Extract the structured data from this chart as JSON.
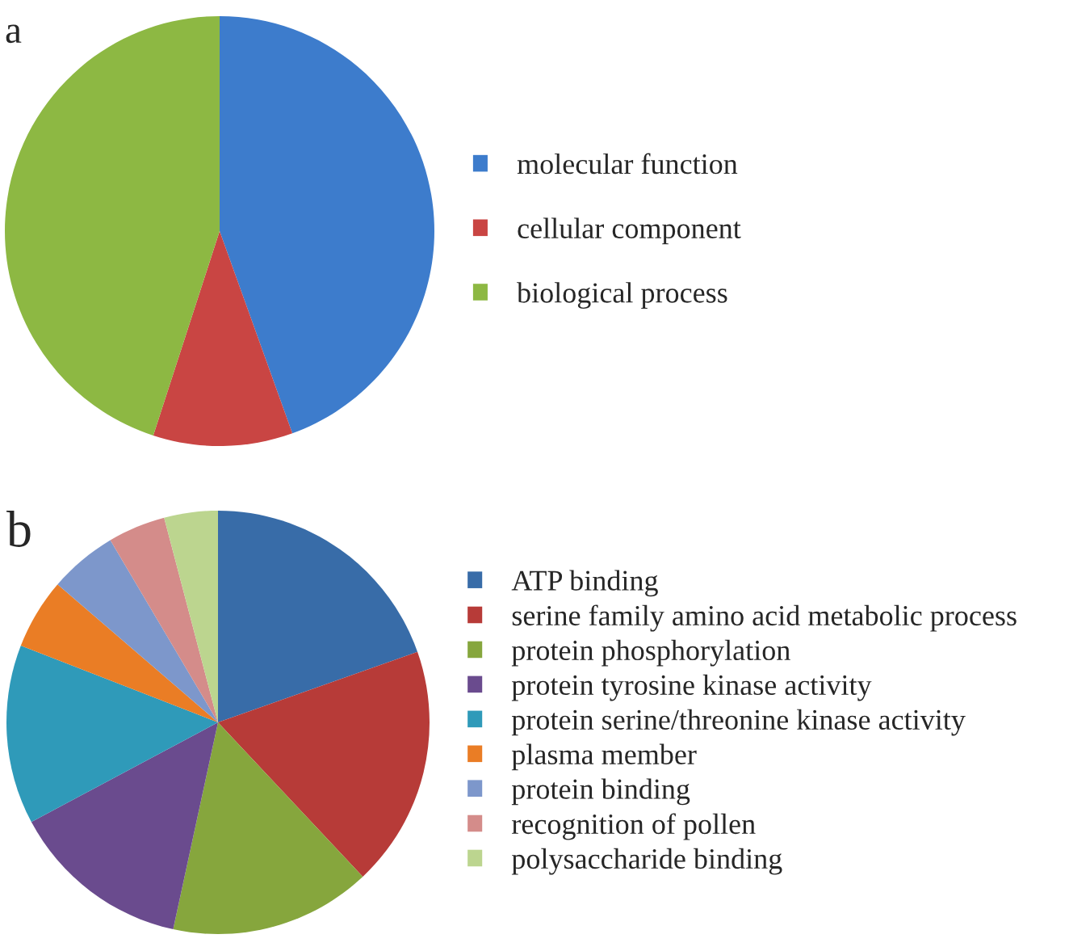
{
  "chart_data": [
    {
      "type": "pie",
      "title": "a",
      "categories": [
        "molecular function",
        "cellular component",
        "biological process"
      ],
      "values": [
        44.5,
        10.5,
        45
      ],
      "colors": [
        "#3d7ccc",
        "#c94543",
        "#8db843"
      ],
      "legend": "right"
    },
    {
      "type": "pie",
      "title": "b",
      "categories": [
        "ATP binding",
        "serine family amino acid metabolic process",
        "protein phosphorylation",
        "protein tyrosine kinase activity",
        "protein serine/threonine kinase activity",
        "plasma member",
        "protein binding",
        "recognition of pollen",
        "polysaccharide binding"
      ],
      "values": [
        19.6,
        18.4,
        15.4,
        13.8,
        13.7,
        5.4,
        5.2,
        4.4,
        4.1
      ],
      "colors": [
        "#386ca8",
        "#b73b38",
        "#86a63d",
        "#6a4b8e",
        "#2f9ab9",
        "#ea7d25",
        "#7d97cb",
        "#d48c8a",
        "#bcd58f"
      ],
      "legend": "right"
    }
  ]
}
